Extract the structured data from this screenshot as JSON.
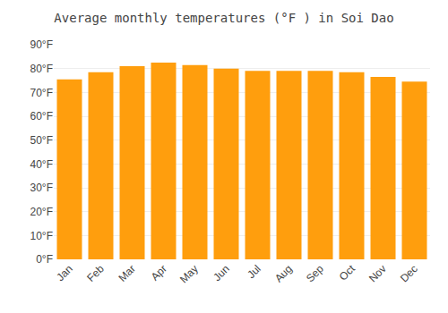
{
  "chart_data": {
    "type": "bar",
    "title": "Average monthly temperatures (°F ) in Soi Dao",
    "categories": [
      "Jan",
      "Feb",
      "Mar",
      "Apr",
      "May",
      "Jun",
      "Jul",
      "Aug",
      "Sep",
      "Oct",
      "Nov",
      "Dec"
    ],
    "values": [
      75.5,
      78.5,
      81.0,
      82.5,
      81.5,
      80.0,
      79.0,
      79.0,
      79.0,
      78.5,
      76.5,
      74.5
    ],
    "color": "#ff9e0d",
    "ylim": [
      0,
      90
    ],
    "yticks": [
      {
        "value": 0,
        "label": "0°F"
      },
      {
        "value": 10,
        "label": "10°F"
      },
      {
        "value": 20,
        "label": "20°F"
      },
      {
        "value": 30,
        "label": "30°F"
      },
      {
        "value": 40,
        "label": "40°F"
      },
      {
        "value": 50,
        "label": "50°F"
      },
      {
        "value": 60,
        "label": "60°F"
      },
      {
        "value": 70,
        "label": "70°F"
      },
      {
        "value": 80,
        "label": "80°F"
      },
      {
        "value": 90,
        "label": "90°F"
      }
    ],
    "grid": true
  }
}
